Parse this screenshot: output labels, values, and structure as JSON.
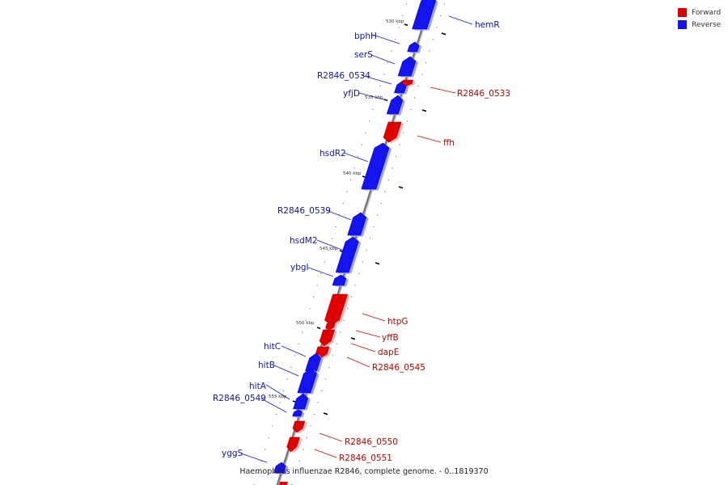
{
  "legend": {
    "forward_label": "Forward",
    "reverse_label": "Reverse",
    "forward_color": "#e00000",
    "reverse_color": "#1414f0"
  },
  "caption": "Haemophilus influenzae R2846, complete genome. - 0..1819370",
  "ticks": [
    {
      "label": "530 kbp"
    },
    {
      "label": "535 kbp"
    },
    {
      "label": "540 kbp"
    },
    {
      "label": "545 kbp"
    },
    {
      "label": "550 kbp"
    },
    {
      "label": "555 kbp"
    }
  ],
  "genes": [
    {
      "name": "hemR",
      "strand": "reverse"
    },
    {
      "name": "bphH",
      "strand": "reverse"
    },
    {
      "name": "serS",
      "strand": "reverse"
    },
    {
      "name": "R2846_0534",
      "strand": "reverse"
    },
    {
      "name": "R2846_0533",
      "strand": "forward"
    },
    {
      "name": "yfjD",
      "strand": "reverse"
    },
    {
      "name": "ffh",
      "strand": "forward"
    },
    {
      "name": "hsdR2",
      "strand": "reverse"
    },
    {
      "name": "R2846_0539",
      "strand": "reverse"
    },
    {
      "name": "hsdM2",
      "strand": "reverse"
    },
    {
      "name": "ybgI",
      "strand": "reverse"
    },
    {
      "name": "htpG",
      "strand": "forward"
    },
    {
      "name": "yffB",
      "strand": "forward"
    },
    {
      "name": "dapE",
      "strand": "forward"
    },
    {
      "name": "R2846_0545",
      "strand": "forward"
    },
    {
      "name": "hitC",
      "strand": "reverse"
    },
    {
      "name": "hitB",
      "strand": "reverse"
    },
    {
      "name": "hitA",
      "strand": "reverse"
    },
    {
      "name": "R2846_0549",
      "strand": "reverse"
    },
    {
      "name": "R2846_0550",
      "strand": "forward"
    },
    {
      "name": "R2846_0551",
      "strand": "forward"
    },
    {
      "name": "yggS",
      "strand": "reverse"
    }
  ]
}
